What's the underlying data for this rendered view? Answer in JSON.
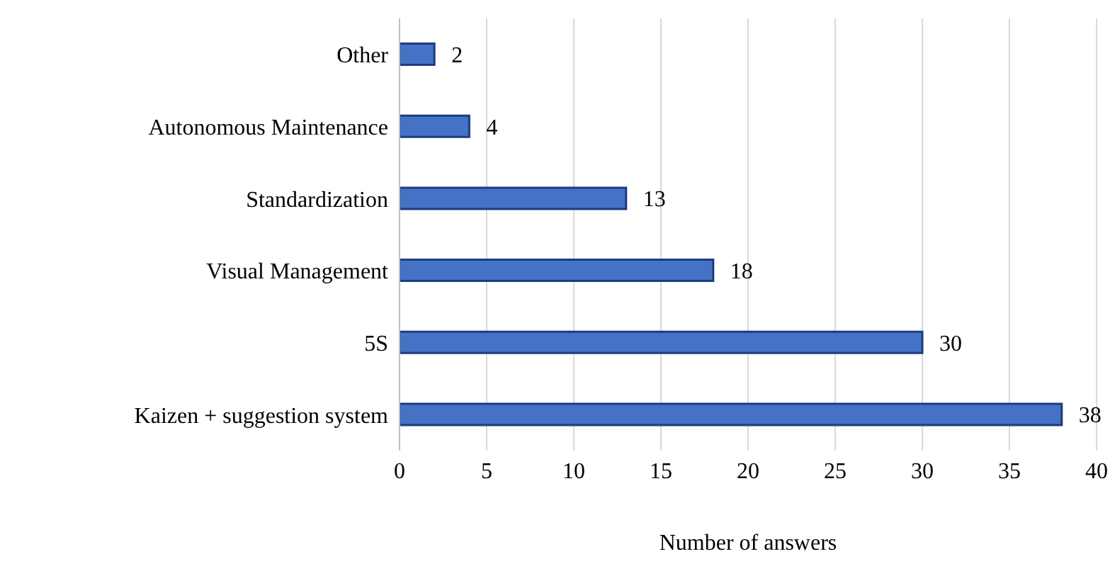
{
  "chart_data": {
    "type": "bar",
    "orientation": "horizontal",
    "categories": [
      "Other",
      "Autonomous Maintenance",
      "Standardization",
      "Visual Management",
      "5S",
      "Kaizen + suggestion system"
    ],
    "values": [
      2,
      4,
      13,
      18,
      30,
      38
    ],
    "color": "#4472c4",
    "xlim": [
      0,
      40
    ],
    "xticks": [
      0,
      5,
      10,
      15,
      20,
      25,
      30,
      35,
      40
    ],
    "xlabel": "Number of answers",
    "grid": "x",
    "data_labels": true
  }
}
